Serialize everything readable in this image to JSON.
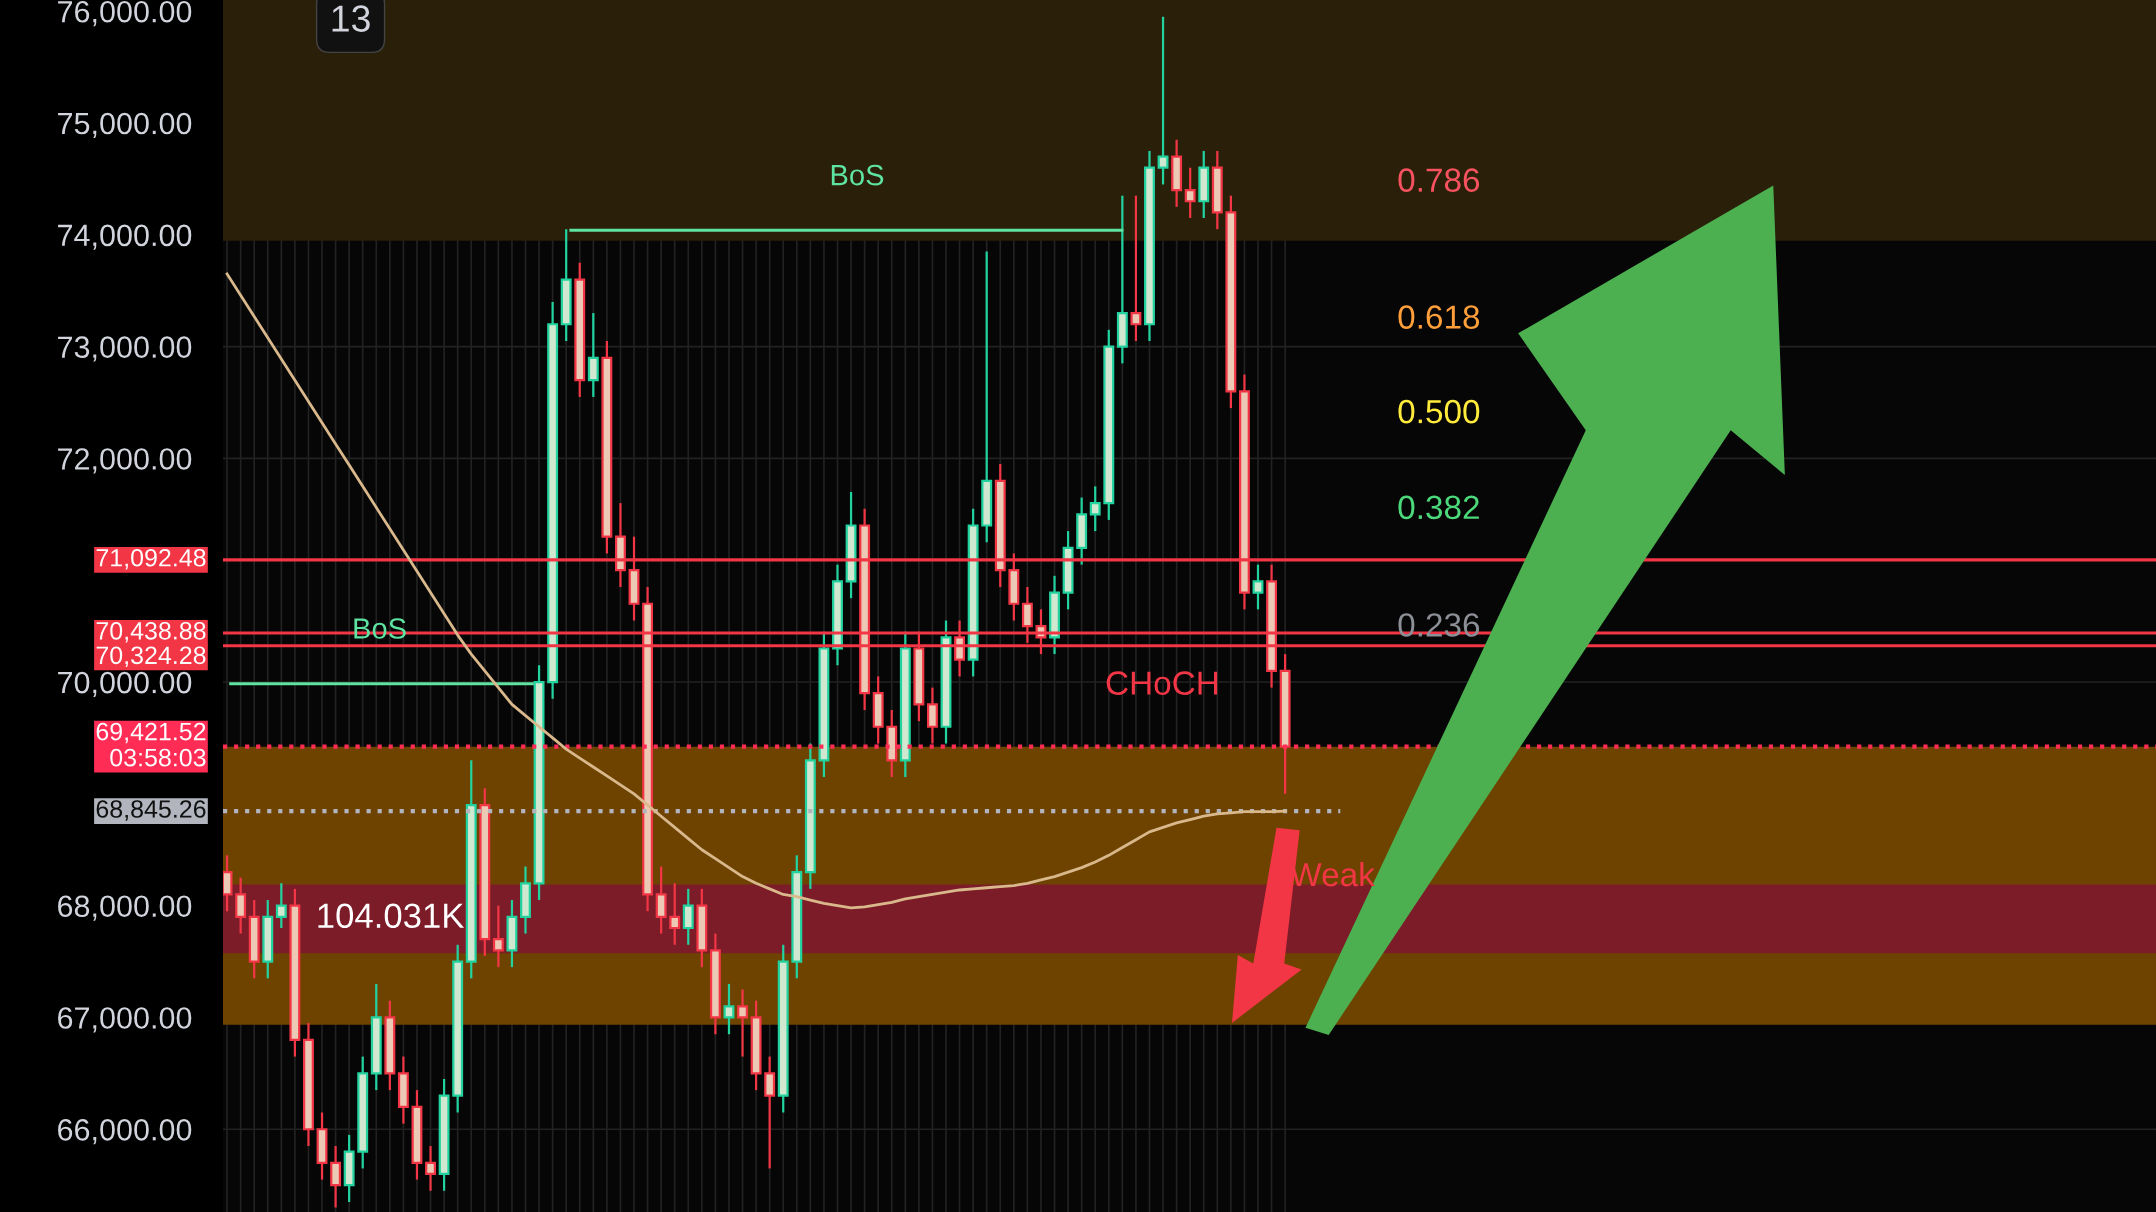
{
  "chart_data": {
    "type": "candlestick",
    "tick_labels": "y",
    "grid": true,
    "categories": [
      null,
      null,
      null,
      null,
      null,
      null,
      null,
      null,
      null,
      null,
      null,
      null,
      null,
      null,
      null,
      null,
      null,
      null,
      null,
      null,
      null,
      null,
      null,
      null,
      null,
      null,
      null,
      null,
      null,
      null,
      null,
      null,
      null,
      null,
      null,
      null,
      null,
      null,
      null,
      null,
      null,
      null,
      null,
      null,
      null,
      null,
      null,
      null,
      null,
      null,
      null,
      null,
      null,
      null,
      null,
      null,
      null,
      null,
      null,
      null,
      null,
      null,
      null,
      null,
      null,
      null,
      null,
      null,
      null,
      null,
      null,
      null,
      null,
      null,
      null,
      null,
      null,
      null,
      null
    ],
    "ohlc": [
      [
        68300,
        68450,
        67950,
        68100
      ],
      [
        68100,
        68250,
        67750,
        67900
      ],
      [
        67900,
        68050,
        67350,
        67500
      ],
      [
        67500,
        68050,
        67350,
        67900
      ],
      [
        67900,
        68200,
        67800,
        68000
      ],
      [
        68000,
        68150,
        66650,
        66800
      ],
      [
        66800,
        66950,
        65850,
        66000
      ],
      [
        66000,
        66150,
        65550,
        65700
      ],
      [
        65700,
        65850,
        65300,
        65500
      ],
      [
        65500,
        65950,
        65350,
        65800
      ],
      [
        65800,
        66650,
        65650,
        66500
      ],
      [
        66500,
        67300,
        66350,
        67000
      ],
      [
        67000,
        67150,
        66350,
        66500
      ],
      [
        66500,
        66650,
        66050,
        66200
      ],
      [
        66200,
        66350,
        65550,
        65700
      ],
      [
        65700,
        65850,
        65450,
        65600
      ],
      [
        65600,
        66450,
        65450,
        66300
      ],
      [
        66300,
        67650,
        66150,
        67500
      ],
      [
        67500,
        69300,
        67350,
        68900
      ],
      [
        68900,
        69050,
        67550,
        67700
      ],
      [
        67700,
        68000,
        67450,
        67600
      ],
      [
        67600,
        68050,
        67450,
        67900
      ],
      [
        67900,
        68350,
        67750,
        68200
      ],
      [
        68200,
        70150,
        68050,
        70000
      ],
      [
        70000,
        73400,
        69850,
        73200
      ],
      [
        73200,
        74050,
        73050,
        73600
      ],
      [
        73600,
        73750,
        72550,
        72700
      ],
      [
        72700,
        73300,
        72550,
        72900
      ],
      [
        72900,
        73050,
        71150,
        71300
      ],
      [
        71300,
        71600,
        70850,
        71000
      ],
      [
        71000,
        71300,
        70550,
        70700
      ],
      [
        70700,
        70850,
        67950,
        68100
      ],
      [
        68100,
        68350,
        67750,
        67900
      ],
      [
        67900,
        68200,
        67650,
        67800
      ],
      [
        67800,
        68150,
        67650,
        68000
      ],
      [
        68000,
        68150,
        67450,
        67600
      ],
      [
        67600,
        67750,
        66850,
        67000
      ],
      [
        67000,
        67300,
        66850,
        67100
      ],
      [
        67100,
        67250,
        66650,
        67000
      ],
      [
        67000,
        67150,
        66350,
        66500
      ],
      [
        66500,
        66650,
        65650,
        66300
      ],
      [
        66300,
        67650,
        66150,
        67500
      ],
      [
        67500,
        68450,
        67350,
        68300
      ],
      [
        68300,
        69450,
        68150,
        69300
      ],
      [
        69300,
        70450,
        69150,
        70300
      ],
      [
        70300,
        71050,
        70150,
        70900
      ],
      [
        70900,
        71700,
        70750,
        71400
      ],
      [
        71400,
        71550,
        69750,
        69900
      ],
      [
        69900,
        70050,
        69450,
        69600
      ],
      [
        69600,
        69750,
        69150,
        69300
      ],
      [
        69300,
        70450,
        69150,
        70300
      ],
      [
        70300,
        70450,
        69650,
        69800
      ],
      [
        69800,
        69950,
        69450,
        69600
      ],
      [
        69600,
        70550,
        69450,
        70400
      ],
      [
        70400,
        70550,
        70050,
        70200
      ],
      [
        70200,
        71550,
        70050,
        71400
      ],
      [
        71400,
        73850,
        71250,
        71800
      ],
      [
        71800,
        71950,
        70850,
        71000
      ],
      [
        71000,
        71150,
        70550,
        70700
      ],
      [
        70700,
        70850,
        70350,
        70500
      ],
      [
        70500,
        70650,
        70250,
        70400
      ],
      [
        70400,
        70950,
        70250,
        70800
      ],
      [
        70800,
        71350,
        70650,
        71200
      ],
      [
        71200,
        71650,
        71050,
        71500
      ],
      [
        71500,
        71750,
        71350,
        71600
      ],
      [
        71600,
        73150,
        71450,
        73000
      ],
      [
        73000,
        74350,
        72850,
        73300
      ],
      [
        73300,
        74350,
        73050,
        73200
      ],
      [
        73200,
        74750,
        73050,
        74600
      ],
      [
        74600,
        75950,
        74450,
        74700
      ],
      [
        74700,
        74850,
        74250,
        74400
      ],
      [
        74400,
        74600,
        74150,
        74300
      ],
      [
        74300,
        74750,
        74150,
        74600
      ],
      [
        74600,
        74750,
        74050,
        74200
      ],
      [
        74200,
        74350,
        72450,
        72600
      ],
      [
        72600,
        72750,
        70650,
        70800
      ],
      [
        70800,
        71050,
        70650,
        70900
      ],
      [
        70900,
        71050,
        69950,
        70100
      ],
      [
        70100,
        70250,
        69000,
        69421.52
      ]
    ],
    "series": [
      {
        "type": "line",
        "color": "#d9b88c",
        "values": [
          73650,
          73460,
          73270,
          73080,
          72890,
          72700,
          72510,
          72320,
          72130,
          71940,
          71750,
          71560,
          71370,
          71180,
          70990,
          70800,
          70610,
          70420,
          70250,
          70100,
          69950,
          69800,
          69700,
          69600,
          69500,
          69400,
          69320,
          69240,
          69160,
          69080,
          69000,
          68900,
          68800,
          68700,
          68600,
          68500,
          68420,
          68340,
          68260,
          68200,
          68150,
          68100,
          68080,
          68050,
          68020,
          68000,
          67980,
          67990,
          68010,
          68030,
          68060,
          68080,
          68100,
          68120,
          68140,
          68150,
          68160,
          68170,
          68180,
          68200,
          68230,
          68260,
          68300,
          68340,
          68390,
          68450,
          68520,
          68590,
          68660,
          68700,
          68740,
          68770,
          68800,
          68820,
          68830,
          68840,
          68840,
          68840,
          68845.26
        ]
      }
    ],
    "ylim": [
      65260,
      76100
    ],
    "yticks": [
      {
        "value": 66000,
        "label": "66,000.00"
      },
      {
        "value": 67000,
        "label": "67,000.00"
      },
      {
        "value": 68000,
        "label": "68,000.00"
      },
      {
        "value": 70000,
        "label": "70,000.00"
      },
      {
        "value": 72000,
        "label": "72,000.00"
      },
      {
        "value": 73000,
        "label": "73,000.00"
      },
      {
        "value": 74000,
        "label": "74,000.00"
      },
      {
        "value": 75000,
        "label": "75,000.00"
      },
      {
        "value": 76000,
        "label": "76,000.00"
      }
    ],
    "bands": [
      {
        "axis": "y",
        "from": 73946,
        "to": 76100,
        "color": "#2a1f08"
      },
      {
        "axis": "y",
        "from": 66935,
        "to": 69421.52,
        "color": "#6e4300"
      },
      {
        "axis": "y",
        "from": 67575,
        "to": 68190,
        "label": "104.031K",
        "color": "#7c1c28"
      }
    ],
    "ref_lines": [
      {
        "axis": "y",
        "value": 74040,
        "label": "BoS",
        "color": "#5ee3a1",
        "line_style": "solid"
      },
      {
        "axis": "y",
        "value": 69985,
        "label": "BoS",
        "color": "#5ee3a1",
        "line_style": "solid"
      },
      {
        "axis": "y",
        "value": 71092.48,
        "label": "71,092.48",
        "color": "#f23645",
        "line_style": "solid"
      },
      {
        "axis": "y",
        "value": 70438.88,
        "label": "70,438.88",
        "color": "#f23645",
        "line_style": "solid"
      },
      {
        "axis": "y",
        "value": 70324.28,
        "label": "70,324.28",
        "color": "#f23645",
        "line_style": "solid"
      },
      {
        "axis": "y",
        "value": 69421.52,
        "label": "69,421.52\n03:58:03",
        "color": "#ff2d55",
        "line_style": "dotted"
      },
      {
        "axis": "y",
        "value": 68845.26,
        "label": "68,845.26",
        "color": "#b2b5be",
        "line_style": "dotted"
      }
    ],
    "annotations": [
      "13",
      "0.786",
      "0.618",
      "0.500",
      "0.382",
      "0.236",
      "CHoCH",
      "Weak"
    ]
  }
}
